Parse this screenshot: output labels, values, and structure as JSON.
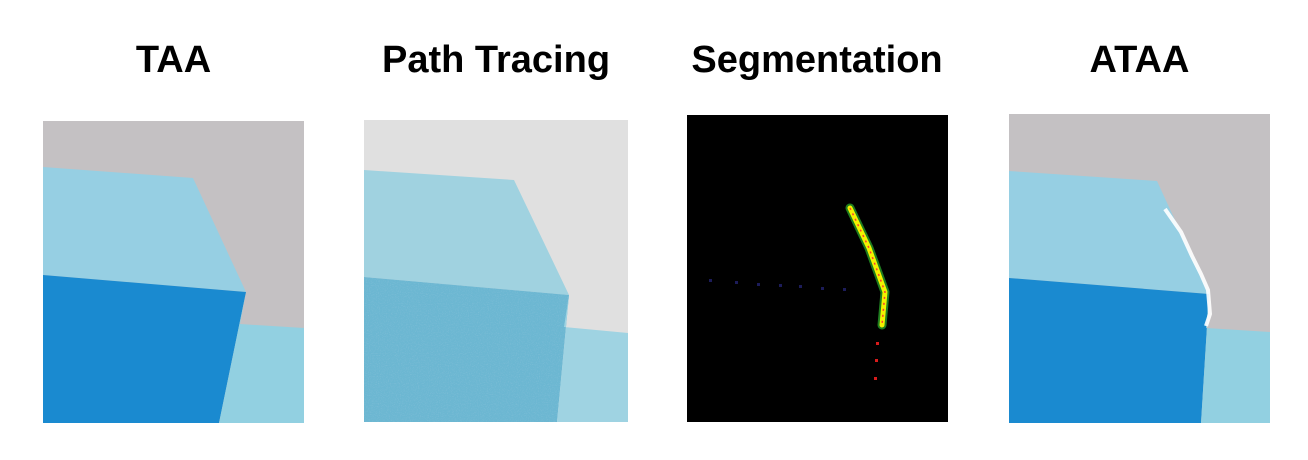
{
  "panels": [
    {
      "title": "TAA",
      "colors": {
        "wall": "#c4c1c3",
        "top": "#96cfe3",
        "side": "#1a8ad0",
        "floor": "#92d0e1"
      }
    },
    {
      "title": "Path Tracing",
      "colors": {
        "wall": "#e0e0e0",
        "top": "#a0d2e0",
        "side": "#6cb7d2",
        "floor": "#9fd3e2",
        "noise": "#3f8fb0"
      }
    },
    {
      "title": "Segmentation",
      "colors": {
        "background": "#000000",
        "edge": "#f2f200",
        "edge_glow": "#39e639",
        "edge_core": "#ff3b2f",
        "dots": "#d81b1b",
        "dim_dots": "#1c1c5a"
      }
    },
    {
      "title": "ATAA",
      "colors": {
        "wall": "#c4c1c3",
        "top": "#96cfe3",
        "side": "#1a8ad0",
        "floor": "#92d0e1",
        "fringe": "#ffffff"
      }
    }
  ]
}
